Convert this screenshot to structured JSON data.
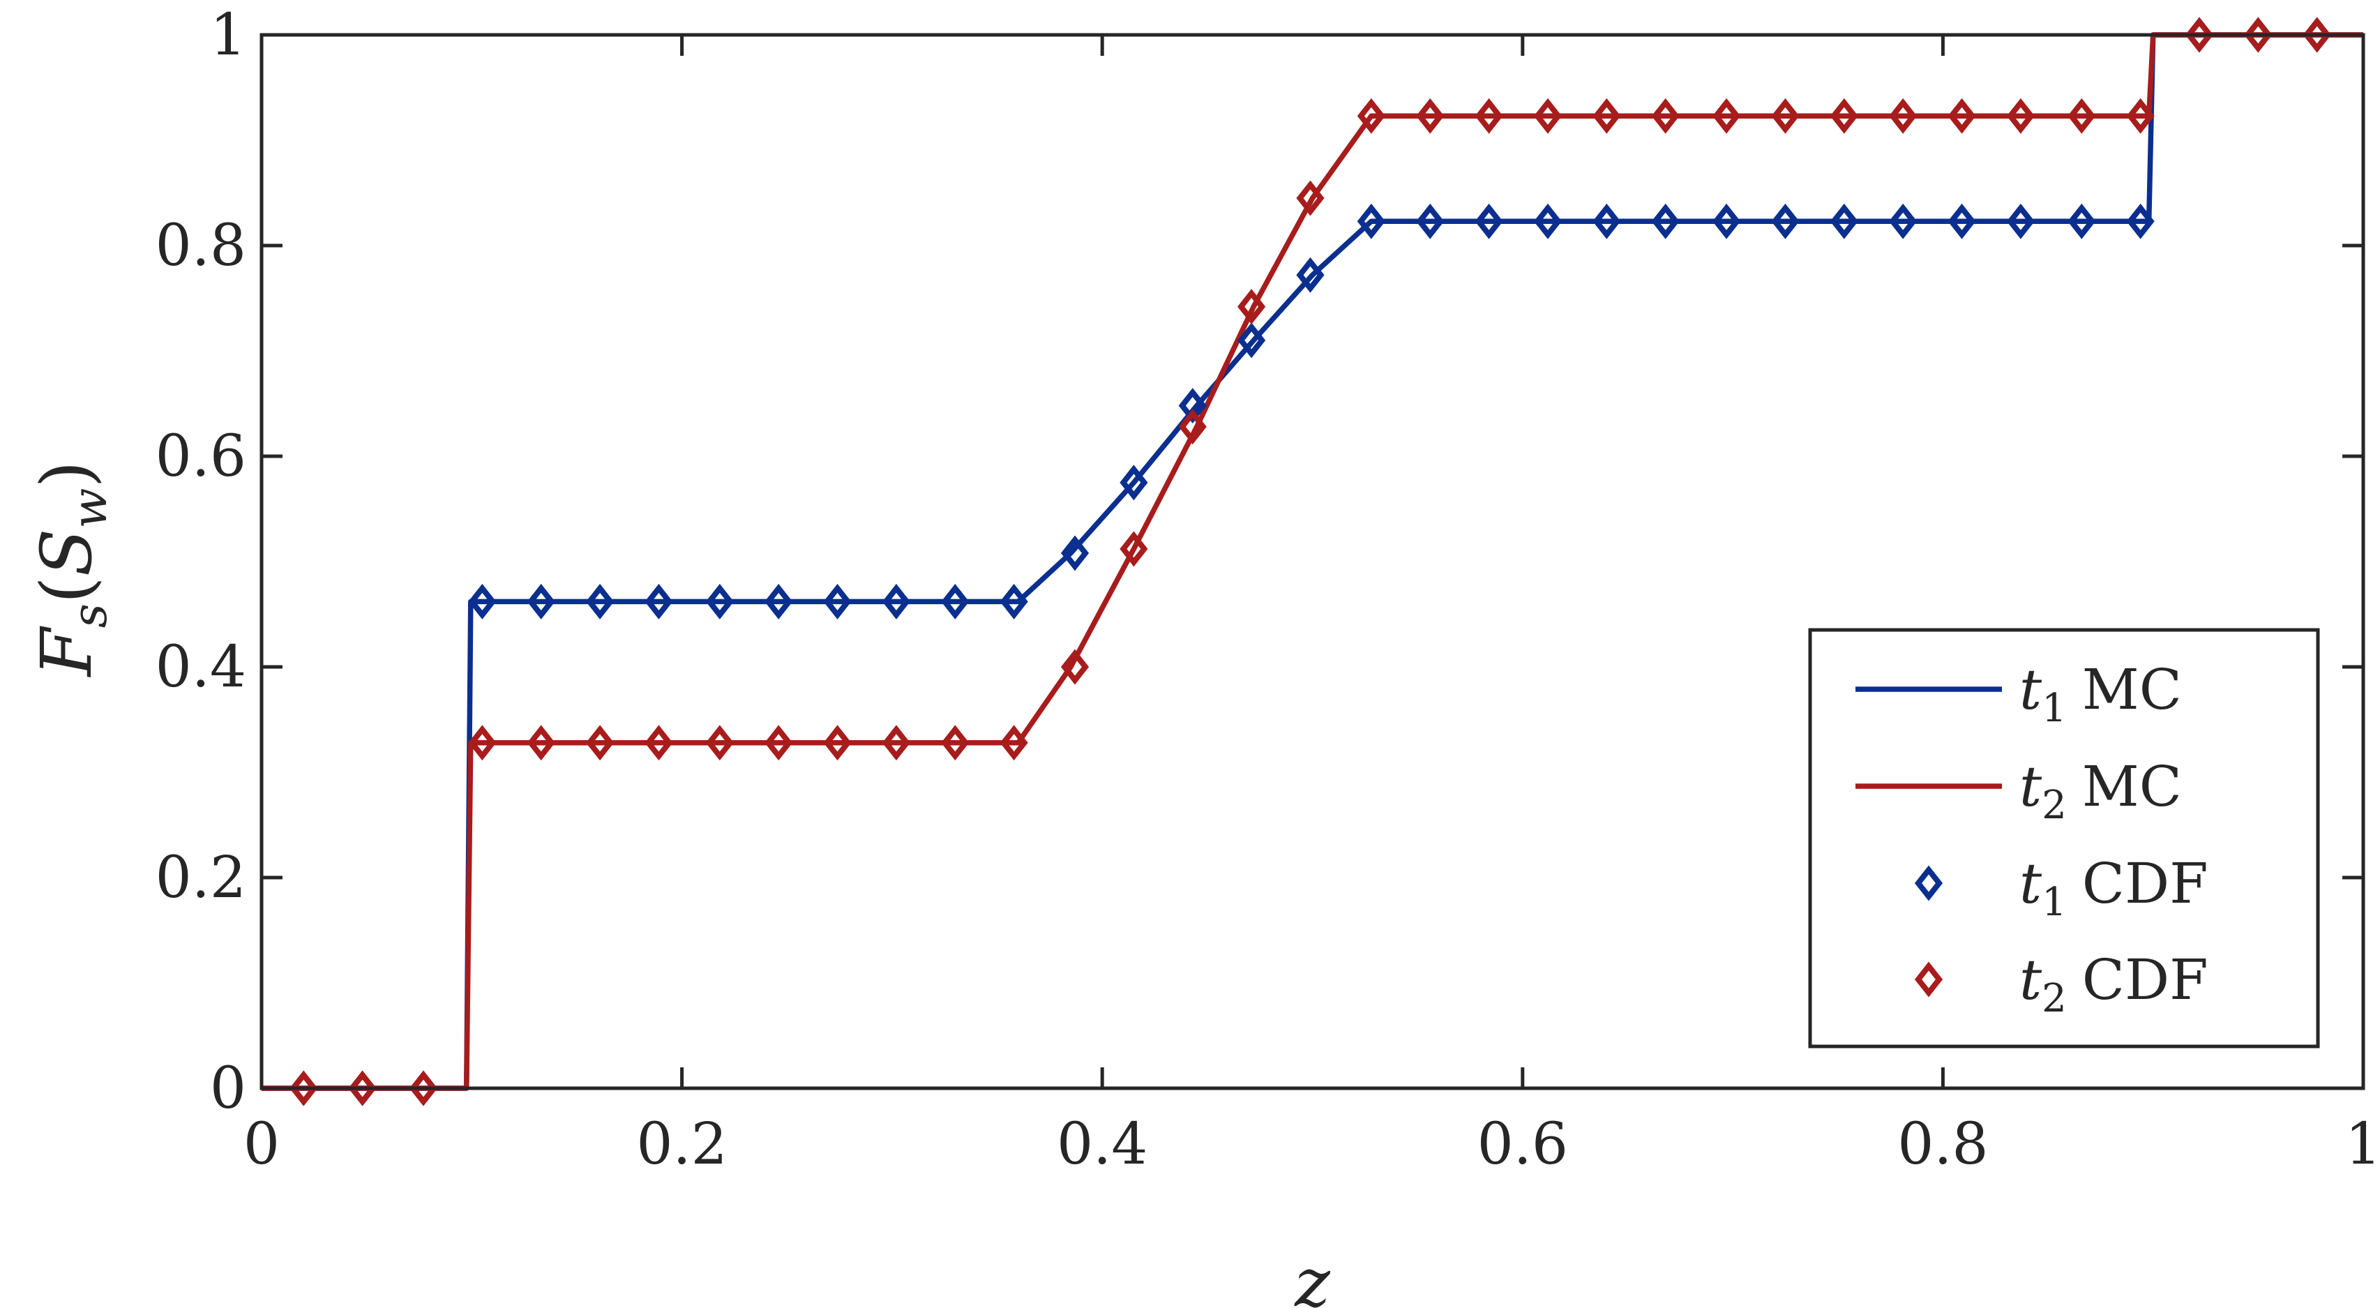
{
  "chart_data": {
    "type": "line",
    "xlabel": "z",
    "ylabel": "F_s(S_w)",
    "xlim": [
      0,
      1
    ],
    "ylim": [
      0,
      1
    ],
    "xticks": [
      0,
      0.2,
      0.4,
      0.6,
      0.8,
      1
    ],
    "yticks": [
      0,
      0.2,
      0.4,
      0.6,
      0.8,
      1
    ],
    "xtick_labels": [
      "0",
      "0.2",
      "0.4",
      "0.6",
      "0.8",
      "1"
    ],
    "ytick_labels": [
      "0",
      "0.2",
      "0.4",
      "0.6",
      "0.8",
      "1"
    ],
    "grid": false,
    "box": true,
    "legend_position": "bottom-right",
    "series": [
      {
        "name": "t1 MC",
        "legend_label": {
          "main": "t",
          "sub": "1",
          "suffix": "MC"
        },
        "kind": "line",
        "color": "#0a2f8f",
        "x": [
          0,
          0.0975,
          0.0995,
          0.36,
          0.385,
          0.415,
          0.445,
          0.472,
          0.5,
          0.528,
          0.898,
          0.9,
          1
        ],
        "y": [
          0,
          0,
          0.462,
          0.462,
          0.508,
          0.575,
          0.648,
          0.71,
          0.772,
          0.823,
          0.823,
          1,
          1
        ]
      },
      {
        "name": "t2 MC",
        "legend_label": {
          "main": "t",
          "sub": "2",
          "suffix": "MC"
        },
        "kind": "line",
        "color": "#a81c1c",
        "x": [
          0,
          0.0975,
          0.0995,
          0.36,
          0.385,
          0.415,
          0.445,
          0.472,
          0.5,
          0.528,
          0.898,
          0.9,
          1
        ],
        "y": [
          0,
          0,
          0.328,
          0.328,
          0.4,
          0.512,
          0.628,
          0.742,
          0.845,
          0.923,
          0.923,
          1,
          1
        ]
      },
      {
        "name": "t1 CDF",
        "legend_label": {
          "main": "t",
          "sub": "1",
          "suffix": "CDF"
        },
        "kind": "markers",
        "marker": "diamond",
        "color": "#0a2f8f",
        "x": [
          0.02,
          0.048,
          0.077,
          0.105,
          0.133,
          0.161,
          0.189,
          0.218,
          0.246,
          0.274,
          0.302,
          0.33,
          0.358,
          0.387,
          0.415,
          0.443,
          0.471,
          0.499,
          0.528,
          0.556,
          0.584,
          0.612,
          0.64,
          0.668,
          0.697,
          0.725,
          0.753,
          0.781,
          0.809,
          0.837,
          0.866,
          0.894,
          0.922,
          0.95,
          0.978
        ],
        "y": [
          0,
          0,
          0,
          0.462,
          0.462,
          0.462,
          0.462,
          0.462,
          0.462,
          0.462,
          0.462,
          0.462,
          0.462,
          0.508,
          0.575,
          0.648,
          0.71,
          0.772,
          0.823,
          0.823,
          0.823,
          0.823,
          0.823,
          0.823,
          0.823,
          0.823,
          0.823,
          0.823,
          0.823,
          0.823,
          0.823,
          0.823,
          1,
          1,
          1
        ]
      },
      {
        "name": "t2 CDF",
        "legend_label": {
          "main": "t",
          "sub": "2",
          "suffix": "CDF"
        },
        "kind": "markers",
        "marker": "diamond",
        "color": "#a81c1c",
        "x": [
          0.02,
          0.048,
          0.077,
          0.105,
          0.133,
          0.161,
          0.189,
          0.218,
          0.246,
          0.274,
          0.302,
          0.33,
          0.358,
          0.387,
          0.415,
          0.443,
          0.471,
          0.499,
          0.528,
          0.556,
          0.584,
          0.612,
          0.64,
          0.668,
          0.697,
          0.725,
          0.753,
          0.781,
          0.809,
          0.837,
          0.866,
          0.894,
          0.922,
          0.95,
          0.978
        ],
        "y": [
          0,
          0,
          0,
          0.328,
          0.328,
          0.328,
          0.328,
          0.328,
          0.328,
          0.328,
          0.328,
          0.328,
          0.328,
          0.4,
          0.512,
          0.628,
          0.742,
          0.845,
          0.923,
          0.923,
          0.923,
          0.923,
          0.923,
          0.923,
          0.923,
          0.923,
          0.923,
          0.923,
          0.923,
          0.923,
          0.923,
          0.923,
          1,
          1,
          1
        ]
      }
    ]
  }
}
